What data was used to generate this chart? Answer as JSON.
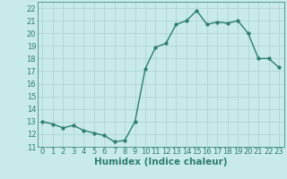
{
  "x": [
    0,
    1,
    2,
    3,
    4,
    5,
    6,
    7,
    8,
    9,
    10,
    11,
    12,
    13,
    14,
    15,
    16,
    17,
    18,
    19,
    20,
    21,
    22,
    23
  ],
  "y": [
    13.0,
    12.8,
    12.5,
    12.7,
    12.3,
    12.1,
    11.9,
    11.4,
    11.5,
    13.0,
    17.2,
    18.9,
    19.2,
    20.7,
    21.0,
    21.8,
    20.7,
    20.9,
    20.8,
    21.0,
    20.0,
    18.0,
    18.0,
    17.3
  ],
  "line_color": "#2e7d6e",
  "marker": "o",
  "marker_size": 2.5,
  "linewidth": 1.0,
  "xlabel": "Humidex (Indice chaleur)",
  "xlim": [
    -0.5,
    23.5
  ],
  "ylim": [
    11,
    22.5
  ],
  "yticks": [
    11,
    12,
    13,
    14,
    15,
    16,
    17,
    18,
    19,
    20,
    21,
    22
  ],
  "xticks": [
    0,
    1,
    2,
    3,
    4,
    5,
    6,
    7,
    8,
    9,
    10,
    11,
    12,
    13,
    14,
    15,
    16,
    17,
    18,
    19,
    20,
    21,
    22,
    23
  ],
  "background_color": "#c8eaea",
  "grid_color": "#b0d4d4",
  "tick_label_fontsize": 6.0,
  "xlabel_fontsize": 7.5,
  "xlabel_fontweight": "bold"
}
